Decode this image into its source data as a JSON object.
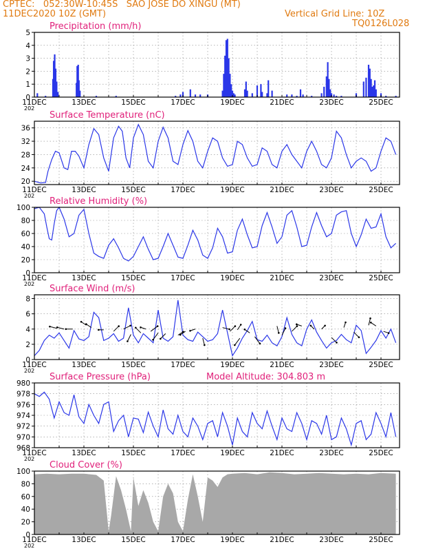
{
  "header": {
    "line1": "CPTEC:   052:30W-10:45S   SAO JOSE DO XINGU (MT)",
    "line2": "11DEC2020 10Z (GMT)",
    "grid_note": "Vertical Grid Line: 10Z",
    "code": "TQ0126L028"
  },
  "colors": {
    "header": "#e07a10",
    "title": "#e0207a",
    "series": "#2a36e8",
    "cloud": "#a8a8a8",
    "frame": "#000000",
    "grid": "#888888"
  },
  "date_labels": [
    "11DEC",
    "13DEC",
    "15DEC",
    "17DEC",
    "19DEC",
    "21DEC",
    "23DEC",
    "25DEC"
  ],
  "year_stub": "202",
  "chart_data": [
    {
      "id": "precip",
      "type": "bar",
      "title": "Precipitation (mm/h)",
      "ylim": [
        0,
        5
      ],
      "yticks": [
        0,
        1,
        2,
        3,
        4,
        5
      ],
      "x_unit": "days since 11DEC 10Z",
      "x": [
        0.12,
        0.45,
        0.75,
        0.78,
        0.82,
        0.86,
        0.9,
        0.95,
        1.7,
        1.73,
        1.77,
        1.8,
        1.84,
        2.5,
        3.3,
        5.7,
        5.9,
        6.0,
        6.3,
        6.5,
        6.7,
        7.0,
        7.6,
        7.65,
        7.7,
        7.75,
        7.8,
        7.85,
        7.9,
        7.95,
        8.0,
        8.05,
        8.1,
        8.5,
        8.55,
        8.6,
        8.8,
        9.0,
        9.15,
        9.2,
        9.4,
        9.45,
        9.6,
        10.2,
        10.4,
        10.6,
        10.75,
        10.85,
        11.2,
        11.6,
        11.7,
        11.8,
        11.85,
        11.9,
        11.95,
        12.0,
        12.1,
        12.2,
        12.4,
        13.0,
        13.3,
        13.4,
        13.5,
        13.55,
        13.6,
        13.65,
        13.7,
        13.75,
        13.8,
        14.0,
        14.2,
        14.6
      ],
      "values": [
        0.3,
        0.1,
        1.4,
        2.8,
        3.3,
        2.2,
        1.2,
        0.4,
        1.1,
        2.4,
        2.5,
        1.3,
        0.5,
        0.1,
        0.1,
        0.1,
        0.2,
        0.4,
        0.6,
        0.2,
        0.2,
        0.2,
        0.5,
        1.8,
        3.2,
        4.4,
        4.5,
        3.0,
        1.8,
        1.0,
        0.5,
        0.3,
        0.2,
        0.6,
        1.2,
        0.5,
        0.3,
        0.9,
        1.0,
        0.4,
        0.3,
        1.3,
        0.5,
        0.2,
        0.2,
        0.1,
        0.6,
        0.2,
        0.1,
        0.3,
        0.8,
        1.6,
        2.7,
        1.4,
        0.6,
        0.3,
        0.2,
        0.1,
        0.1,
        0.3,
        1.2,
        1.5,
        2.5,
        2.2,
        1.4,
        0.8,
        0.9,
        1.3,
        0.6,
        0.3,
        0.1,
        0.1
      ]
    },
    {
      "id": "temp",
      "type": "line",
      "title": "Surface Temperature (nC)",
      "ylim": [
        19,
        38
      ],
      "yticks": [
        20,
        24,
        28,
        32,
        36
      ],
      "x": [
        0,
        0.25,
        0.45,
        0.55,
        0.7,
        0.85,
        1.0,
        1.2,
        1.35,
        1.5,
        1.65,
        1.8,
        2.0,
        2.2,
        2.4,
        2.6,
        2.8,
        3.0,
        3.2,
        3.4,
        3.55,
        3.7,
        3.85,
        4.0,
        4.2,
        4.4,
        4.6,
        4.8,
        5.0,
        5.2,
        5.4,
        5.6,
        5.8,
        6.0,
        6.2,
        6.4,
        6.6,
        6.8,
        7.0,
        7.2,
        7.4,
        7.6,
        7.8,
        8.0,
        8.2,
        8.4,
        8.6,
        8.8,
        9.0,
        9.2,
        9.4,
        9.6,
        9.8,
        10.0,
        10.2,
        10.4,
        10.6,
        10.8,
        11.0,
        11.2,
        11.4,
        11.6,
        11.8,
        12.0,
        12.2,
        12.4,
        12.6,
        12.8,
        13.0,
        13.2,
        13.4,
        13.6,
        13.8,
        14.0,
        14.2,
        14.4,
        14.6
      ],
      "values": [
        20,
        19.5,
        19.6,
        23,
        26.5,
        29,
        28.5,
        24,
        23.5,
        29,
        29,
        27.5,
        24,
        31,
        35.8,
        34,
        27,
        23,
        33,
        36.5,
        35,
        27,
        24,
        33,
        37,
        34,
        26,
        24,
        32,
        36.2,
        33,
        26,
        25,
        31,
        35.2,
        32,
        26,
        24,
        29,
        33,
        32,
        27,
        24.5,
        25,
        32,
        31,
        27,
        24.5,
        25,
        30,
        29,
        25,
        24,
        29,
        31,
        28,
        26,
        24,
        29,
        32,
        29,
        25,
        24,
        27,
        35,
        33,
        28,
        24,
        26,
        27,
        26,
        23,
        24,
        29,
        33,
        32,
        28
      ]
    },
    {
      "id": "rh",
      "type": "line",
      "title": "Relative Humidity (%)",
      "ylim": [
        0,
        100
      ],
      "yticks": [
        0,
        20,
        40,
        60,
        80,
        100
      ],
      "x": [
        0,
        0.2,
        0.4,
        0.5,
        0.6,
        0.7,
        0.8,
        0.9,
        1.0,
        1.2,
        1.4,
        1.6,
        1.8,
        2.0,
        2.2,
        2.4,
        2.6,
        2.8,
        3.0,
        3.2,
        3.4,
        3.6,
        3.8,
        4.0,
        4.2,
        4.4,
        4.6,
        4.8,
        5.0,
        5.2,
        5.4,
        5.6,
        5.8,
        6.0,
        6.2,
        6.4,
        6.6,
        6.8,
        7.0,
        7.2,
        7.4,
        7.6,
        7.8,
        8.0,
        8.2,
        8.4,
        8.6,
        8.8,
        9.0,
        9.2,
        9.4,
        9.6,
        9.8,
        10.0,
        10.2,
        10.4,
        10.6,
        10.8,
        11.0,
        11.2,
        11.4,
        11.6,
        11.8,
        12.0,
        12.2,
        12.4,
        12.6,
        12.8,
        13.0,
        13.2,
        13.4,
        13.6,
        13.8,
        14.0,
        14.2,
        14.4,
        14.6
      ],
      "values": [
        98,
        100,
        90,
        70,
        52,
        50,
        75,
        95,
        100,
        82,
        55,
        60,
        88,
        97,
        60,
        30,
        25,
        22,
        42,
        52,
        38,
        22,
        18,
        25,
        40,
        55,
        36,
        20,
        22,
        40,
        60,
        42,
        24,
        22,
        42,
        65,
        50,
        27,
        22,
        38,
        68,
        55,
        30,
        32,
        65,
        82,
        58,
        38,
        40,
        72,
        92,
        70,
        45,
        55,
        88,
        95,
        70,
        40,
        42,
        70,
        92,
        72,
        55,
        60,
        88,
        93,
        95,
        60,
        40,
        58,
        82,
        68,
        70,
        90,
        55,
        38,
        45
      ]
    },
    {
      "id": "wind",
      "type": "line",
      "title": "Surface Wind (m/s)",
      "ylim": [
        0,
        8.5
      ],
      "yticks": [
        0,
        2,
        4,
        6,
        8
      ],
      "x": [
        0,
        0.2,
        0.4,
        0.6,
        0.8,
        1.0,
        1.2,
        1.4,
        1.6,
        1.8,
        2.0,
        2.2,
        2.4,
        2.6,
        2.8,
        3.0,
        3.2,
        3.4,
        3.6,
        3.8,
        4.0,
        4.2,
        4.4,
        4.6,
        4.8,
        5.0,
        5.2,
        5.4,
        5.6,
        5.8,
        6.0,
        6.2,
        6.4,
        6.6,
        6.8,
        7.0,
        7.2,
        7.4,
        7.6,
        7.8,
        8.0,
        8.2,
        8.4,
        8.6,
        8.8,
        9.0,
        9.2,
        9.4,
        9.6,
        9.8,
        10.0,
        10.2,
        10.4,
        10.6,
        10.8,
        11.0,
        11.2,
        11.4,
        11.6,
        11.8,
        12.0,
        12.2,
        12.4,
        12.6,
        12.8,
        13.0,
        13.2,
        13.4,
        13.6,
        13.8,
        14.0,
        14.2,
        14.4,
        14.6
      ],
      "values": [
        0.5,
        1.2,
        2.5,
        3.2,
        2.8,
        3.5,
        2.5,
        1.5,
        3.8,
        2.7,
        2.5,
        3,
        6.2,
        5.5,
        2.5,
        2.8,
        3.4,
        2.4,
        2.8,
        6.8,
        3.2,
        2.2,
        3.4,
        2.8,
        2.2,
        6.5,
        2.8,
        2.4,
        3,
        7.8,
        3.2,
        2.6,
        2.4,
        3.6,
        3,
        2.4,
        2.6,
        3.4,
        6.5,
        3.5,
        0.5,
        1.5,
        2.8,
        3.8,
        5,
        2.6,
        2.4,
        3.2,
        2.2,
        1.8,
        3,
        5.5,
        3.3,
        2.2,
        1.8,
        4,
        5.2,
        3.6,
        2.5,
        1.5,
        2.2,
        2.5,
        3.3,
        2.6,
        2.2,
        4.5,
        3.8,
        0.8,
        1.6,
        2.5,
        3.8,
        2.8,
        4,
        2.2
      ]
    },
    {
      "id": "pres",
      "type": "line",
      "title": "Surface Pressure (hPa)",
      "note": "Model Altitude: 304.803 m",
      "ylim": [
        968,
        980
      ],
      "yticks": [
        968,
        970,
        972,
        974,
        976,
        978,
        980
      ],
      "x": [
        0,
        0.2,
        0.4,
        0.6,
        0.8,
        1.0,
        1.2,
        1.4,
        1.6,
        1.8,
        2.0,
        2.2,
        2.4,
        2.6,
        2.8,
        3.0,
        3.2,
        3.4,
        3.6,
        3.8,
        4.0,
        4.2,
        4.4,
        4.6,
        4.8,
        5.0,
        5.2,
        5.4,
        5.6,
        5.8,
        6.0,
        6.2,
        6.4,
        6.6,
        6.8,
        7.0,
        7.2,
        7.4,
        7.6,
        7.8,
        8.0,
        8.2,
        8.4,
        8.6,
        8.8,
        9.0,
        9.2,
        9.4,
        9.6,
        9.8,
        10.0,
        10.2,
        10.4,
        10.6,
        10.8,
        11.0,
        11.2,
        11.4,
        11.6,
        11.8,
        12.0,
        12.2,
        12.4,
        12.6,
        12.8,
        13.0,
        13.2,
        13.4,
        13.6,
        13.8,
        14.0,
        14.2,
        14.4,
        14.6
      ],
      "values": [
        978,
        977.5,
        978.3,
        977,
        973.5,
        976.5,
        974.5,
        974,
        977.8,
        973.7,
        972.5,
        976,
        974,
        972.5,
        976,
        976.5,
        971,
        973,
        974,
        970,
        973.5,
        973.3,
        970.8,
        974.6,
        972,
        970,
        975,
        971.5,
        970.5,
        974,
        971,
        970,
        973.5,
        972,
        969.5,
        972.5,
        973,
        970,
        974.5,
        972,
        968.5,
        973.5,
        971,
        970,
        974.5,
        972.5,
        971.5,
        974.8,
        972,
        969.5,
        973.5,
        971.5,
        971,
        974.5,
        972.5,
        969.5,
        973,
        972.5,
        970.5,
        974,
        969.5,
        970,
        973.5,
        971.5,
        968.5,
        972.5,
        973,
        969.5,
        970.5,
        974.5,
        972.5,
        970,
        974.5,
        970
      ]
    },
    {
      "id": "cloud",
      "type": "area",
      "title": "Cloud Cover (%)",
      "ylim": [
        0,
        100
      ],
      "yticks": [
        0,
        20,
        40,
        60,
        80,
        100
      ],
      "x": [
        0,
        0.5,
        1.0,
        1.5,
        2.0,
        2.5,
        2.8,
        3.0,
        3.1,
        3.3,
        3.5,
        3.7,
        3.9,
        4.0,
        4.2,
        4.4,
        4.6,
        4.8,
        5.0,
        5.2,
        5.4,
        5.6,
        5.8,
        6.0,
        6.2,
        6.4,
        6.6,
        6.8,
        7.0,
        7.2,
        7.4,
        7.6,
        7.8,
        8.0,
        8.5,
        9.0,
        9.5,
        10.0,
        10.5,
        11.0,
        11.5,
        12.0,
        12.5,
        13.0,
        13.5,
        14.0,
        14.6
      ],
      "values": [
        95,
        96,
        95,
        96,
        96,
        94,
        85,
        5,
        30,
        92,
        70,
        40,
        5,
        90,
        45,
        70,
        50,
        20,
        5,
        60,
        80,
        65,
        20,
        5,
        55,
        95,
        60,
        20,
        90,
        85,
        75,
        90,
        95,
        96,
        97,
        95,
        98,
        97,
        95,
        96,
        97,
        96,
        95,
        96,
        95,
        97,
        96
      ]
    }
  ]
}
